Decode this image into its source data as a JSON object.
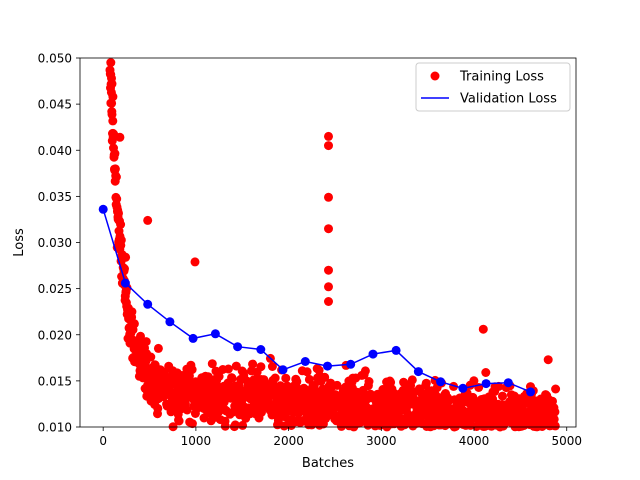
{
  "chart_data": {
    "type": "scatter",
    "title": "",
    "xlabel": "Batches",
    "ylabel": "Loss",
    "xlim": [
      -250,
      5100
    ],
    "ylim": [
      0.01,
      0.05
    ],
    "x_ticks": [
      0,
      1000,
      2000,
      3000,
      4000,
      5000
    ],
    "x_tick_labels": [
      "0",
      "1000",
      "2000",
      "3000",
      "4000",
      "5000"
    ],
    "y_ticks": [
      0.01,
      0.015,
      0.02,
      0.025,
      0.03,
      0.035,
      0.04,
      0.045,
      0.05
    ],
    "y_tick_labels": [
      "0.010",
      "0.015",
      "0.020",
      "0.025",
      "0.030",
      "0.035",
      "0.040",
      "0.045",
      "0.050"
    ],
    "grid": false,
    "legend_position": "top-right",
    "series": [
      {
        "name": "Training Loss",
        "kind": "scatter",
        "color": "#ff0000",
        "x_range": [
          70,
          4880
        ],
        "trend": {
          "start": 0.049,
          "plateau": 0.0135,
          "decay_rate": 0.0072,
          "linear_slope": -6e-07,
          "spread": 0.0028
        },
        "spike": {
          "x": 2430,
          "values": [
            0.0415,
            0.0405,
            0.0349,
            0.0315,
            0.027,
            0.0252,
            0.0236
          ]
        },
        "notable_points": [
          {
            "x": 82,
            "y": 0.0495
          },
          {
            "x": 90,
            "y": 0.0478
          },
          {
            "x": 95,
            "y": 0.0472
          },
          {
            "x": 105,
            "y": 0.0458
          },
          {
            "x": 180,
            "y": 0.0414
          },
          {
            "x": 480,
            "y": 0.0324
          },
          {
            "x": 990,
            "y": 0.0279
          },
          {
            "x": 4100,
            "y": 0.0206
          },
          {
            "x": 4800,
            "y": 0.0173
          }
        ]
      },
      {
        "name": "Validation Loss",
        "kind": "line-markers",
        "color": "#0000ff",
        "x": [
          0,
          240,
          480,
          720,
          970,
          1210,
          1450,
          1700,
          1940,
          2180,
          2420,
          2670,
          2910,
          3160,
          3400,
          3640,
          3880,
          4130,
          4370,
          4610
        ],
        "y": [
          0.0336,
          0.0256,
          0.0233,
          0.0214,
          0.0196,
          0.0201,
          0.0187,
          0.0184,
          0.0162,
          0.0171,
          0.0166,
          0.0168,
          0.0179,
          0.0183,
          0.016,
          0.0149,
          0.0142,
          0.0147,
          0.0148,
          0.0138
        ]
      }
    ]
  }
}
